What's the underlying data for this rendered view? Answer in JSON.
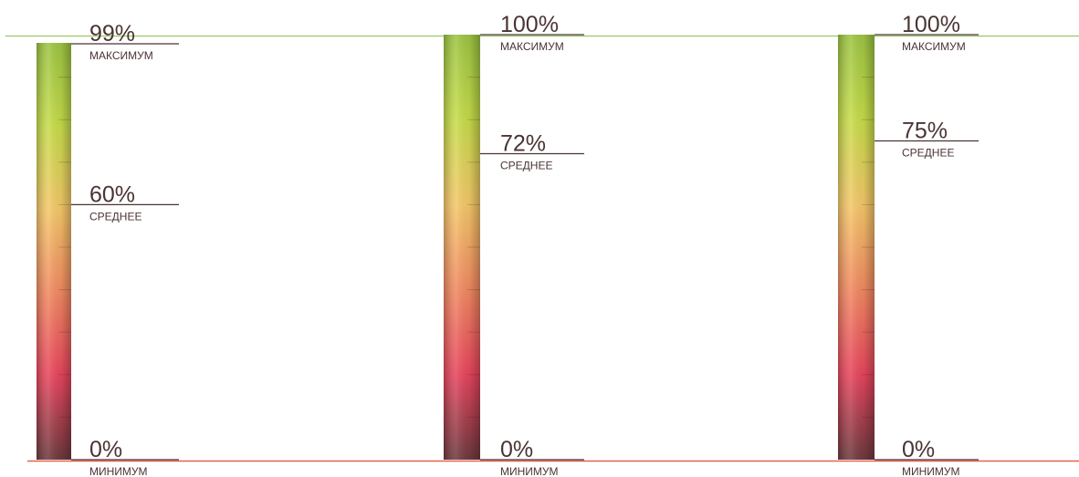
{
  "reference_lines": {
    "top_color": "#8bc34a",
    "bottom_color": "#e8604c"
  },
  "gradient": {
    "stops": [
      "#9dc543",
      "#c7dd4a",
      "#f5c86a",
      "#f28a62",
      "#e8465e",
      "#6e3a3f"
    ]
  },
  "chart_data": [
    {
      "type": "gauge",
      "max": {
        "value": 99,
        "label": "99%",
        "caption": "МАКСИМУМ"
      },
      "avg": {
        "value": 60,
        "label": "60%",
        "caption": "СРЕДНЕЕ"
      },
      "min": {
        "value": 0,
        "label": "0%",
        "caption": "МИНИМУМ"
      }
    },
    {
      "type": "gauge",
      "max": {
        "value": 100,
        "label": "100%",
        "caption": "МАКСИМУМ"
      },
      "avg": {
        "value": 72,
        "label": "72%",
        "caption": "СРЕДНЕЕ"
      },
      "min": {
        "value": 0,
        "label": "0%",
        "caption": "МИНИМУМ"
      }
    },
    {
      "type": "gauge",
      "max": {
        "value": 100,
        "label": "100%",
        "caption": "МАКСИМУМ"
      },
      "avg": {
        "value": 75,
        "label": "75%",
        "caption": "СРЕДНЕЕ"
      },
      "min": {
        "value": 0,
        "label": "0%",
        "caption": "МИНИМУМ"
      }
    }
  ]
}
